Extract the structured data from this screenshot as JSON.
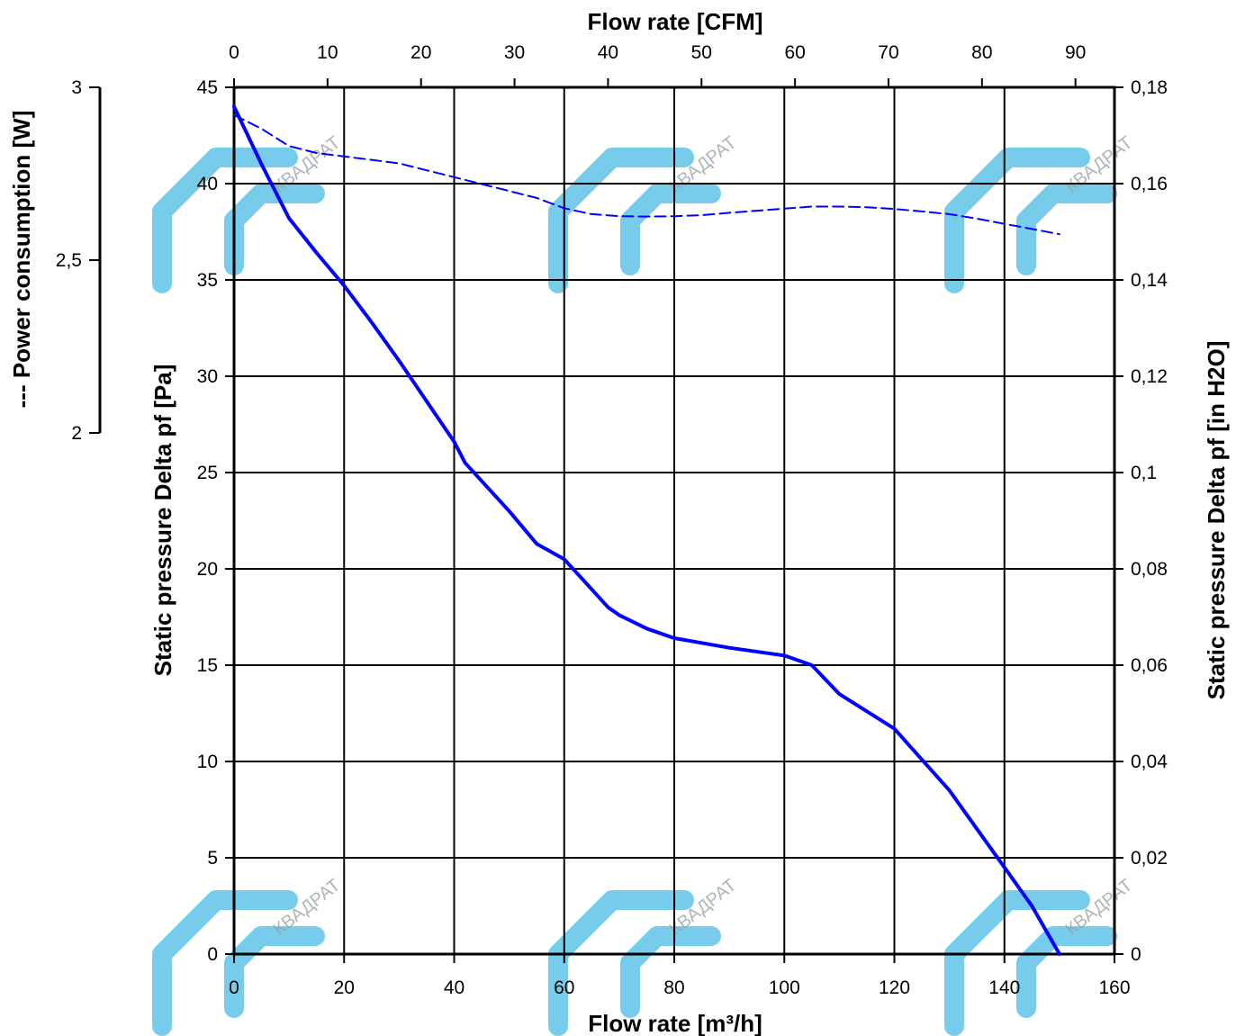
{
  "watermark": {
    "text": "КВАДРАТ",
    "icon": "kvadrat-logo-icon",
    "color": "#5ec3e6"
  },
  "chart_data": {
    "type": "line",
    "title": "",
    "axes": {
      "x_bottom": {
        "label": "Flow rate [m³/h]",
        "range": [
          0,
          160
        ],
        "ticks": [
          "0",
          "20",
          "40",
          "60",
          "80",
          "100",
          "120",
          "140",
          "160"
        ]
      },
      "x_top": {
        "label": "Flow rate [CFM]",
        "range": [
          0,
          94.17
        ],
        "ticks": [
          "0",
          "10",
          "20",
          "30",
          "40",
          "50",
          "60",
          "70",
          "80",
          "90"
        ]
      },
      "y_left": {
        "label": "Static pressure Delta pf [Pa]",
        "range": [
          0,
          45
        ],
        "ticks": [
          "0",
          "5",
          "10",
          "15",
          "20",
          "25",
          "30",
          "35",
          "40",
          "45"
        ]
      },
      "y_right": {
        "label": "Static pressure Delta pf [in H2O]",
        "range": [
          0,
          0.18
        ],
        "ticks": [
          "0",
          "0,02",
          "0,04",
          "0,06",
          "0,08",
          "0,1",
          "0,12",
          "0,14",
          "0,16",
          "0,18"
        ]
      },
      "y_power": {
        "label": "--- Power consumption [W]",
        "range": [
          2,
          3
        ],
        "ticks": [
          "2",
          "2,5",
          "3"
        ]
      }
    },
    "grid": true,
    "series": [
      {
        "name": "Static pressure",
        "style": "solid",
        "color": "#0000ff",
        "axis": "y_left",
        "x": [
          0,
          5,
          10,
          15,
          20,
          25,
          30,
          35,
          40,
          42,
          50,
          55,
          60,
          68,
          70,
          75,
          80,
          90,
          100,
          105,
          110,
          120,
          130,
          135,
          140,
          145,
          150
        ],
        "y": [
          44,
          41,
          38.2,
          36.4,
          34.7,
          32.8,
          30.8,
          28.7,
          26.6,
          25.5,
          23,
          21.3,
          20.5,
          18,
          17.6,
          16.9,
          16.4,
          15.9,
          15.5,
          15,
          13.5,
          11.7,
          8.5,
          6.5,
          4.5,
          2.5,
          0
        ]
      },
      {
        "name": "Power consumption",
        "style": "dashed",
        "color": "#0000ff",
        "axis": "y_power",
        "x": [
          0,
          5,
          10,
          15,
          20,
          25,
          30,
          35,
          40,
          45,
          50,
          55,
          60,
          65,
          70,
          75,
          80,
          85,
          90,
          95,
          100,
          105,
          110,
          115,
          120,
          125,
          130,
          135,
          140,
          145,
          150
        ],
        "y": [
          2.92,
          2.88,
          2.83,
          2.81,
          2.8,
          2.79,
          2.78,
          2.76,
          2.74,
          2.72,
          2.7,
          2.68,
          2.65,
          2.633,
          2.627,
          2.626,
          2.627,
          2.63,
          2.637,
          2.643,
          2.649,
          2.655,
          2.655,
          2.653,
          2.648,
          2.641,
          2.633,
          2.62,
          2.605,
          2.59,
          2.575
        ]
      }
    ]
  }
}
